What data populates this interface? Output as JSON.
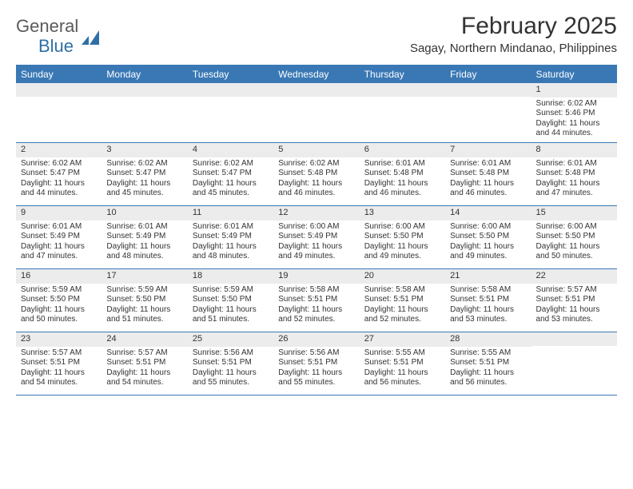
{
  "brand": {
    "name1": "General",
    "name2": "Blue"
  },
  "title": "February 2025",
  "location": "Sagay, Northern Mindanao, Philippines",
  "colors": {
    "header_bg": "#3a78b5",
    "header_text": "#ffffff",
    "daynum_bg": "#ececec",
    "body_text": "#333333",
    "logo_gray": "#5a5a5a",
    "logo_blue": "#2f6fa7"
  },
  "day_headers": [
    "Sunday",
    "Monday",
    "Tuesday",
    "Wednesday",
    "Thursday",
    "Friday",
    "Saturday"
  ],
  "weeks": [
    [
      {
        "n": "",
        "sr": "",
        "ss": "",
        "dl": ""
      },
      {
        "n": "",
        "sr": "",
        "ss": "",
        "dl": ""
      },
      {
        "n": "",
        "sr": "",
        "ss": "",
        "dl": ""
      },
      {
        "n": "",
        "sr": "",
        "ss": "",
        "dl": ""
      },
      {
        "n": "",
        "sr": "",
        "ss": "",
        "dl": ""
      },
      {
        "n": "",
        "sr": "",
        "ss": "",
        "dl": ""
      },
      {
        "n": "1",
        "sr": "Sunrise: 6:02 AM",
        "ss": "Sunset: 5:46 PM",
        "dl": "Daylight: 11 hours and 44 minutes."
      }
    ],
    [
      {
        "n": "2",
        "sr": "Sunrise: 6:02 AM",
        "ss": "Sunset: 5:47 PM",
        "dl": "Daylight: 11 hours and 44 minutes."
      },
      {
        "n": "3",
        "sr": "Sunrise: 6:02 AM",
        "ss": "Sunset: 5:47 PM",
        "dl": "Daylight: 11 hours and 45 minutes."
      },
      {
        "n": "4",
        "sr": "Sunrise: 6:02 AM",
        "ss": "Sunset: 5:47 PM",
        "dl": "Daylight: 11 hours and 45 minutes."
      },
      {
        "n": "5",
        "sr": "Sunrise: 6:02 AM",
        "ss": "Sunset: 5:48 PM",
        "dl": "Daylight: 11 hours and 46 minutes."
      },
      {
        "n": "6",
        "sr": "Sunrise: 6:01 AM",
        "ss": "Sunset: 5:48 PM",
        "dl": "Daylight: 11 hours and 46 minutes."
      },
      {
        "n": "7",
        "sr": "Sunrise: 6:01 AM",
        "ss": "Sunset: 5:48 PM",
        "dl": "Daylight: 11 hours and 46 minutes."
      },
      {
        "n": "8",
        "sr": "Sunrise: 6:01 AM",
        "ss": "Sunset: 5:48 PM",
        "dl": "Daylight: 11 hours and 47 minutes."
      }
    ],
    [
      {
        "n": "9",
        "sr": "Sunrise: 6:01 AM",
        "ss": "Sunset: 5:49 PM",
        "dl": "Daylight: 11 hours and 47 minutes."
      },
      {
        "n": "10",
        "sr": "Sunrise: 6:01 AM",
        "ss": "Sunset: 5:49 PM",
        "dl": "Daylight: 11 hours and 48 minutes."
      },
      {
        "n": "11",
        "sr": "Sunrise: 6:01 AM",
        "ss": "Sunset: 5:49 PM",
        "dl": "Daylight: 11 hours and 48 minutes."
      },
      {
        "n": "12",
        "sr": "Sunrise: 6:00 AM",
        "ss": "Sunset: 5:49 PM",
        "dl": "Daylight: 11 hours and 49 minutes."
      },
      {
        "n": "13",
        "sr": "Sunrise: 6:00 AM",
        "ss": "Sunset: 5:50 PM",
        "dl": "Daylight: 11 hours and 49 minutes."
      },
      {
        "n": "14",
        "sr": "Sunrise: 6:00 AM",
        "ss": "Sunset: 5:50 PM",
        "dl": "Daylight: 11 hours and 49 minutes."
      },
      {
        "n": "15",
        "sr": "Sunrise: 6:00 AM",
        "ss": "Sunset: 5:50 PM",
        "dl": "Daylight: 11 hours and 50 minutes."
      }
    ],
    [
      {
        "n": "16",
        "sr": "Sunrise: 5:59 AM",
        "ss": "Sunset: 5:50 PM",
        "dl": "Daylight: 11 hours and 50 minutes."
      },
      {
        "n": "17",
        "sr": "Sunrise: 5:59 AM",
        "ss": "Sunset: 5:50 PM",
        "dl": "Daylight: 11 hours and 51 minutes."
      },
      {
        "n": "18",
        "sr": "Sunrise: 5:59 AM",
        "ss": "Sunset: 5:50 PM",
        "dl": "Daylight: 11 hours and 51 minutes."
      },
      {
        "n": "19",
        "sr": "Sunrise: 5:58 AM",
        "ss": "Sunset: 5:51 PM",
        "dl": "Daylight: 11 hours and 52 minutes."
      },
      {
        "n": "20",
        "sr": "Sunrise: 5:58 AM",
        "ss": "Sunset: 5:51 PM",
        "dl": "Daylight: 11 hours and 52 minutes."
      },
      {
        "n": "21",
        "sr": "Sunrise: 5:58 AM",
        "ss": "Sunset: 5:51 PM",
        "dl": "Daylight: 11 hours and 53 minutes."
      },
      {
        "n": "22",
        "sr": "Sunrise: 5:57 AM",
        "ss": "Sunset: 5:51 PM",
        "dl": "Daylight: 11 hours and 53 minutes."
      }
    ],
    [
      {
        "n": "23",
        "sr": "Sunrise: 5:57 AM",
        "ss": "Sunset: 5:51 PM",
        "dl": "Daylight: 11 hours and 54 minutes."
      },
      {
        "n": "24",
        "sr": "Sunrise: 5:57 AM",
        "ss": "Sunset: 5:51 PM",
        "dl": "Daylight: 11 hours and 54 minutes."
      },
      {
        "n": "25",
        "sr": "Sunrise: 5:56 AM",
        "ss": "Sunset: 5:51 PM",
        "dl": "Daylight: 11 hours and 55 minutes."
      },
      {
        "n": "26",
        "sr": "Sunrise: 5:56 AM",
        "ss": "Sunset: 5:51 PM",
        "dl": "Daylight: 11 hours and 55 minutes."
      },
      {
        "n": "27",
        "sr": "Sunrise: 5:55 AM",
        "ss": "Sunset: 5:51 PM",
        "dl": "Daylight: 11 hours and 56 minutes."
      },
      {
        "n": "28",
        "sr": "Sunrise: 5:55 AM",
        "ss": "Sunset: 5:51 PM",
        "dl": "Daylight: 11 hours and 56 minutes."
      },
      {
        "n": "",
        "sr": "",
        "ss": "",
        "dl": ""
      }
    ]
  ]
}
